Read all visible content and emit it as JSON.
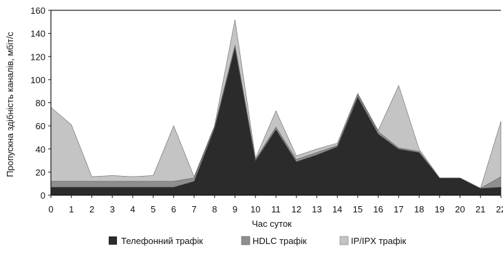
{
  "chart_data": {
    "type": "area",
    "stacked": true,
    "xlabel": "Час суток",
    "ylabel": "Пропускна здібність каналів, мбіт/с",
    "x": [
      0,
      1,
      2,
      3,
      4,
      5,
      6,
      7,
      8,
      9,
      10,
      11,
      12,
      13,
      14,
      15,
      16,
      17,
      18,
      19,
      20,
      21,
      22
    ],
    "ylim": [
      0,
      160
    ],
    "yticks": [
      0,
      20,
      40,
      60,
      80,
      100,
      120,
      140,
      160
    ],
    "legend_position": "bottom",
    "series": [
      {
        "name": "Телефонний трафік",
        "color": "#2b2b2b",
        "values": [
          7,
          7,
          7,
          7,
          7,
          7,
          7,
          12,
          58,
          128,
          30,
          57,
          29,
          35,
          42,
          85,
          53,
          40,
          37,
          15,
          15,
          6,
          7
        ]
      },
      {
        "name": "HDLC трафік",
        "color": "#8f8f8f",
        "values": [
          5,
          5,
          5,
          5,
          5,
          5,
          5,
          3,
          1,
          2,
          1,
          2,
          2,
          2,
          1,
          2,
          2,
          1,
          1,
          0,
          0,
          0,
          9
        ]
      },
      {
        "name": "IP/IPX трафік",
        "color": "#c4c4c4",
        "values": [
          64,
          49,
          4,
          5,
          4,
          5,
          48,
          1,
          1,
          22,
          1,
          14,
          3,
          3,
          2,
          1,
          1,
          54,
          2,
          0,
          0,
          0,
          48
        ]
      }
    ]
  }
}
